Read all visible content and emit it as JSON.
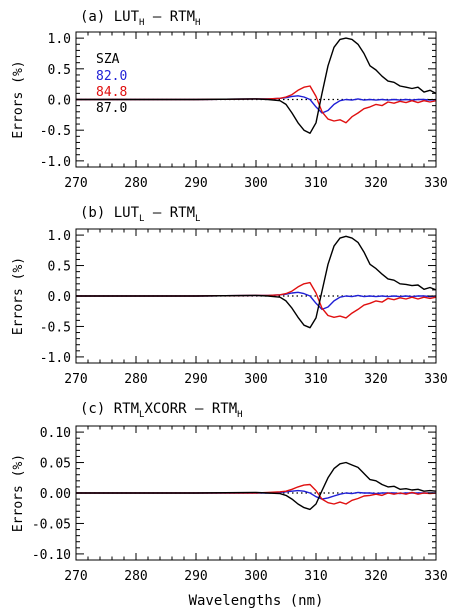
{
  "figure": {
    "xlabel": "Wavelengths (nm)"
  },
  "legend": {
    "title": "SZA",
    "entries": [
      {
        "label": "82.0",
        "color": "#1f1fd6"
      },
      {
        "label": "84.8",
        "color": "#e01010"
      },
      {
        "label": "87.0",
        "color": "#000000"
      }
    ]
  },
  "chart_data": [
    {
      "type": "line",
      "panel": "a",
      "title": {
        "prefix": "(a) LUT",
        "sub1": "H",
        "mid": " – RTM",
        "sub2": "H"
      },
      "xlabel": "",
      "ylabel": "Errors (%)",
      "xlim": [
        270,
        330
      ],
      "ylim": [
        -1.1,
        1.1
      ],
      "xticks": [
        270,
        280,
        290,
        300,
        310,
        320,
        330
      ],
      "xtick_labels": [
        "270",
        "280",
        "290",
        "300",
        "310",
        "320",
        "330"
      ],
      "yticks": [
        -1.0,
        -0.5,
        0.0,
        0.5,
        1.0
      ],
      "ytick_labels": [
        "-1.0",
        "-0.5",
        "0.0",
        "0.5",
        "1.0"
      ],
      "zero_line": true,
      "series": [
        {
          "name": "82.0",
          "color": "#1f1fd6",
          "x": [
            270,
            280,
            290,
            300,
            302,
            304,
            305,
            306,
            307,
            308,
            309,
            310,
            311,
            312,
            313,
            314,
            315,
            316,
            317,
            318,
            319,
            320,
            321,
            322,
            323,
            324,
            325,
            326,
            327,
            328,
            329,
            330
          ],
          "y": [
            0.0,
            0.0,
            0.0,
            0.01,
            0.01,
            0.02,
            0.03,
            0.05,
            0.06,
            0.04,
            0.0,
            -0.12,
            -0.22,
            -0.18,
            -0.08,
            -0.02,
            0.0,
            -0.01,
            0.01,
            -0.01,
            0.0,
            -0.01,
            0.0,
            -0.01,
            0.0,
            -0.01,
            0.0,
            -0.01,
            0.0,
            0.0,
            -0.01,
            0.0
          ]
        },
        {
          "name": "84.8",
          "color": "#e01010",
          "x": [
            270,
            280,
            290,
            300,
            302,
            304,
            305,
            306,
            307,
            308,
            309,
            310,
            311,
            312,
            313,
            314,
            315,
            316,
            317,
            318,
            319,
            320,
            321,
            322,
            323,
            324,
            325,
            326,
            327,
            328,
            329,
            330
          ],
          "y": [
            0.0,
            0.0,
            0.0,
            0.01,
            0.01,
            0.02,
            0.04,
            0.08,
            0.15,
            0.2,
            0.22,
            0.05,
            -0.2,
            -0.32,
            -0.35,
            -0.33,
            -0.38,
            -0.28,
            -0.22,
            -0.15,
            -0.12,
            -0.08,
            -0.1,
            -0.04,
            -0.06,
            -0.03,
            -0.05,
            -0.02,
            -0.05,
            -0.02,
            -0.04,
            -0.02
          ]
        },
        {
          "name": "87.0",
          "color": "#000000",
          "x": [
            270,
            280,
            290,
            300,
            302,
            304,
            305,
            306,
            307,
            308,
            309,
            310,
            311,
            312,
            313,
            314,
            315,
            316,
            317,
            318,
            319,
            320,
            321,
            322,
            323,
            324,
            325,
            326,
            327,
            328,
            329,
            330
          ],
          "y": [
            0.0,
            0.0,
            0.0,
            0.01,
            0.0,
            -0.02,
            -0.08,
            -0.22,
            -0.38,
            -0.5,
            -0.55,
            -0.38,
            0.1,
            0.55,
            0.85,
            0.98,
            1.0,
            0.98,
            0.9,
            0.75,
            0.55,
            0.48,
            0.38,
            0.3,
            0.28,
            0.22,
            0.2,
            0.18,
            0.2,
            0.12,
            0.15,
            0.1
          ]
        }
      ]
    },
    {
      "type": "line",
      "panel": "b",
      "title": {
        "prefix": "(b) LUT",
        "sub1": "L",
        "mid": " – RTM",
        "sub2": "L"
      },
      "xlabel": "",
      "ylabel": "Errors (%)",
      "xlim": [
        270,
        330
      ],
      "ylim": [
        -1.1,
        1.1
      ],
      "xticks": [
        270,
        280,
        290,
        300,
        310,
        320,
        330
      ],
      "xtick_labels": [
        "270",
        "280",
        "290",
        "300",
        "310",
        "320",
        "330"
      ],
      "yticks": [
        -1.0,
        -0.5,
        0.0,
        0.5,
        1.0
      ],
      "ytick_labels": [
        "-1.0",
        "-0.5",
        "0.0",
        "0.5",
        "1.0"
      ],
      "zero_line": true,
      "series": [
        {
          "name": "82.0",
          "color": "#1f1fd6",
          "x": [
            270,
            280,
            290,
            300,
            302,
            304,
            305,
            306,
            307,
            308,
            309,
            310,
            311,
            312,
            313,
            314,
            315,
            316,
            317,
            318,
            319,
            320,
            321,
            322,
            323,
            324,
            325,
            326,
            327,
            328,
            329,
            330
          ],
          "y": [
            0.0,
            0.0,
            0.0,
            0.01,
            0.01,
            0.02,
            0.03,
            0.05,
            0.06,
            0.04,
            0.0,
            -0.12,
            -0.22,
            -0.18,
            -0.08,
            -0.02,
            0.0,
            -0.01,
            0.01,
            -0.01,
            0.0,
            -0.01,
            0.0,
            -0.01,
            0.0,
            -0.01,
            0.0,
            -0.01,
            0.0,
            0.0,
            -0.01,
            0.0
          ]
        },
        {
          "name": "84.8",
          "color": "#e01010",
          "x": [
            270,
            280,
            290,
            300,
            302,
            304,
            305,
            306,
            307,
            308,
            309,
            310,
            311,
            312,
            313,
            314,
            315,
            316,
            317,
            318,
            319,
            320,
            321,
            322,
            323,
            324,
            325,
            326,
            327,
            328,
            329,
            330
          ],
          "y": [
            0.0,
            0.0,
            0.0,
            0.01,
            0.01,
            0.02,
            0.04,
            0.08,
            0.15,
            0.2,
            0.22,
            0.05,
            -0.2,
            -0.32,
            -0.35,
            -0.33,
            -0.36,
            -0.28,
            -0.22,
            -0.15,
            -0.12,
            -0.08,
            -0.1,
            -0.04,
            -0.06,
            -0.03,
            -0.05,
            -0.02,
            -0.05,
            -0.02,
            -0.04,
            -0.02
          ]
        },
        {
          "name": "87.0",
          "color": "#000000",
          "x": [
            270,
            280,
            290,
            300,
            302,
            304,
            305,
            306,
            307,
            308,
            309,
            310,
            311,
            312,
            313,
            314,
            315,
            316,
            317,
            318,
            319,
            320,
            321,
            322,
            323,
            324,
            325,
            326,
            327,
            328,
            329,
            330
          ],
          "y": [
            0.0,
            0.0,
            0.0,
            0.01,
            0.0,
            -0.02,
            -0.08,
            -0.2,
            -0.35,
            -0.48,
            -0.52,
            -0.36,
            0.08,
            0.52,
            0.82,
            0.95,
            0.98,
            0.95,
            0.88,
            0.72,
            0.52,
            0.45,
            0.36,
            0.28,
            0.26,
            0.2,
            0.19,
            0.17,
            0.18,
            0.11,
            0.14,
            0.1
          ]
        }
      ]
    },
    {
      "type": "line",
      "panel": "c",
      "title": {
        "prefix": "(c) RTM",
        "sub1": "L",
        "mid": "XCORR – RTM",
        "sub2": "H"
      },
      "xlabel": "Wavelengths (nm)",
      "ylabel": "Errors (%)",
      "xlim": [
        270,
        330
      ],
      "ylim": [
        -0.11,
        0.11
      ],
      "xticks": [
        270,
        280,
        290,
        300,
        310,
        320,
        330
      ],
      "xtick_labels": [
        "270",
        "280",
        "290",
        "300",
        "310",
        "320",
        "330"
      ],
      "yticks": [
        -0.1,
        -0.05,
        0.0,
        0.05,
        0.1
      ],
      "ytick_labels": [
        "-0.10",
        "-0.05",
        "0.00",
        "0.05",
        "0.10"
      ],
      "zero_line": true,
      "series": [
        {
          "name": "82.0",
          "color": "#1f1fd6",
          "x": [
            270,
            280,
            290,
            300,
            302,
            304,
            305,
            306,
            307,
            308,
            309,
            310,
            311,
            312,
            313,
            314,
            315,
            316,
            317,
            318,
            319,
            320,
            321,
            322,
            323,
            324,
            325,
            326,
            327,
            328,
            329,
            330
          ],
          "y": [
            0.0,
            0.0,
            0.0,
            0.0,
            0.0,
            0.001,
            0.002,
            0.003,
            0.004,
            0.003,
            0.0,
            -0.006,
            -0.01,
            -0.008,
            -0.005,
            -0.002,
            0.0,
            -0.001,
            0.001,
            0.0,
            0.0,
            -0.001,
            0.0,
            0.0,
            0.0,
            -0.001,
            0.0,
            0.0,
            0.0,
            0.0,
            0.0,
            0.0
          ]
        },
        {
          "name": "84.8",
          "color": "#e01010",
          "x": [
            270,
            280,
            290,
            300,
            302,
            304,
            305,
            306,
            307,
            308,
            309,
            310,
            311,
            312,
            313,
            314,
            315,
            316,
            317,
            318,
            319,
            320,
            321,
            322,
            323,
            324,
            325,
            326,
            327,
            328,
            329,
            330
          ],
          "y": [
            0.0,
            0.0,
            0.0,
            0.0,
            0.001,
            0.002,
            0.003,
            0.006,
            0.01,
            0.013,
            0.014,
            0.004,
            -0.01,
            -0.016,
            -0.018,
            -0.015,
            -0.018,
            -0.012,
            -0.009,
            -0.005,
            -0.004,
            -0.002,
            -0.004,
            0.0,
            -0.002,
            0.0,
            -0.002,
            0.001,
            -0.002,
            0.0,
            -0.001,
            0.0
          ]
        },
        {
          "name": "87.0",
          "color": "#000000",
          "x": [
            270,
            280,
            290,
            300,
            302,
            304,
            305,
            306,
            307,
            308,
            309,
            310,
            311,
            312,
            313,
            314,
            315,
            316,
            317,
            318,
            319,
            320,
            321,
            322,
            323,
            324,
            325,
            326,
            327,
            328,
            329,
            330
          ],
          "y": [
            0.0,
            0.0,
            0.0,
            0.001,
            0.0,
            -0.001,
            -0.004,
            -0.01,
            -0.018,
            -0.024,
            -0.027,
            -0.018,
            0.004,
            0.025,
            0.04,
            0.048,
            0.05,
            0.046,
            0.042,
            0.032,
            0.022,
            0.02,
            0.014,
            0.01,
            0.011,
            0.006,
            0.007,
            0.005,
            0.006,
            0.003,
            0.004,
            0.003
          ]
        }
      ]
    }
  ]
}
